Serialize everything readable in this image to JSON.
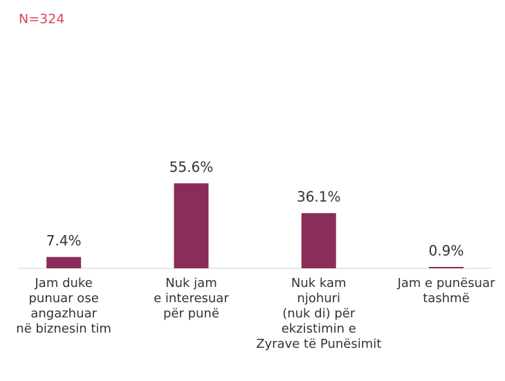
{
  "chart_data": {
    "type": "bar",
    "subtitle": "N=324",
    "categories": [
      "Jam duke\npunuar ose\nangazhuar\nnë biznesin tim",
      "Nuk jam\ne interesuar\npër punë",
      "Nuk kam\nnjohuri\n(nuk di) për\nekzistimin e\nZyrave të Punësimit",
      "Jam e punësuar\ntashmë"
    ],
    "values": [
      7.4,
      55.6,
      36.1,
      0.9
    ],
    "value_labels": [
      "7.4%",
      "55.6%",
      "36.1%",
      "0.9%"
    ],
    "color": "#8b2d5b",
    "ylim": [
      0,
      100
    ]
  }
}
